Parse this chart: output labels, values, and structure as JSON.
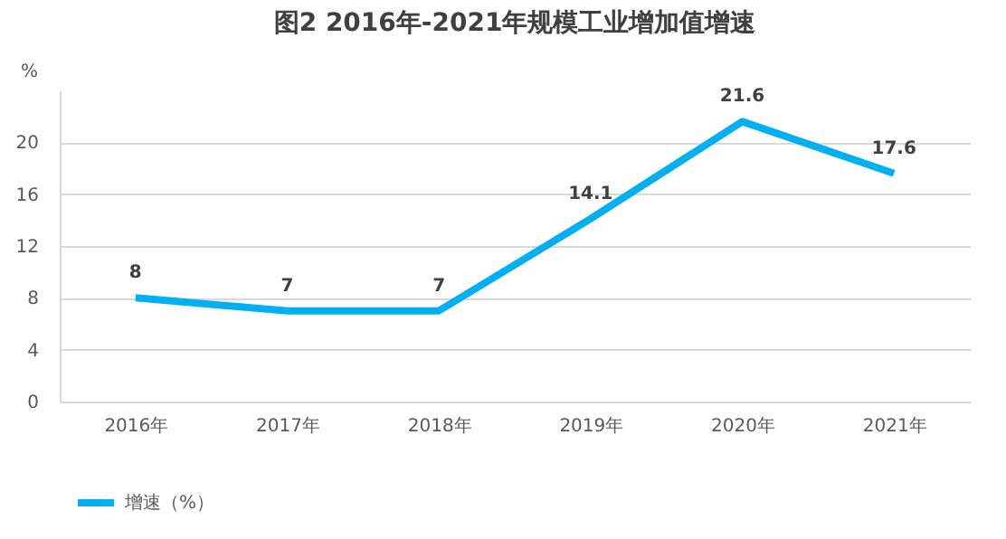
{
  "chart_data": {
    "type": "line",
    "title": "图2  2016年-2021年规模工业增加值增速",
    "ylabel": "%",
    "categories": [
      "2016年",
      "2017年",
      "2018年",
      "2019年",
      "2020年",
      "2021年"
    ],
    "series": [
      {
        "name": "增速（%）",
        "color": "#00b0f0",
        "values": [
          8,
          7,
          7,
          14.1,
          21.6,
          17.6
        ]
      }
    ],
    "ylim": [
      0,
      24
    ],
    "yticks": [
      0,
      4,
      8,
      12,
      16,
      20
    ],
    "grid": "y",
    "legend": "bottom",
    "marker": "none",
    "line_style": "solid",
    "data_labels": true
  }
}
